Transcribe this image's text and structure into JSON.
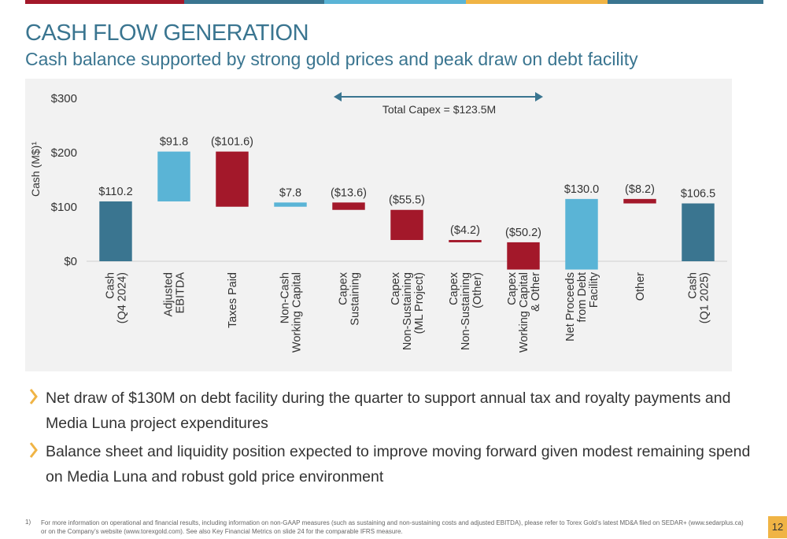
{
  "header": {
    "title": "CASH FLOW GENERATION",
    "subtitle": "Cash balance supported by strong gold prices and peak draw on debt facility"
  },
  "chart_data": {
    "type": "waterfall",
    "y_label": "Cash (M$)¹",
    "annotation": "Total Capex = $123.5M",
    "categories": [
      "Cash\n(Q4 2024)",
      "Adjusted\nEBITDA",
      "Taxes Paid",
      "Non-Cash\nWorking Capital",
      "Capex\nSustaining",
      "Capex\nNon-Sustaining\n(ML Project)",
      "Capex\nNon-Sustaining\n(Other)",
      "Capex\nWorking Capital\n& Other",
      "Net Proceeds\nfrom Debt\nFacility",
      "Other",
      "Cash\n(Q1 2025)"
    ],
    "values": [
      110.2,
      91.8,
      -101.6,
      7.8,
      -13.6,
      -55.5,
      -4.2,
      -50.2,
      130.0,
      -8.2,
      106.5
    ],
    "value_labels": [
      "$110.2",
      "$91.8",
      "($101.6)",
      "$7.8",
      "($13.6)",
      "($55.5)",
      "($4.2)",
      "($50.2)",
      "$130.0",
      "($8.2)",
      "$106.5"
    ],
    "totals": [
      0,
      10
    ],
    "total_color": "#3a7590",
    "increase_color": "#5ab4d6",
    "decrease_color": "#a3182a",
    "ylim": [
      0,
      300
    ],
    "yticks": [
      {
        "value": 0,
        "label": "$0"
      },
      {
        "value": 100,
        "label": "$100"
      },
      {
        "value": 200,
        "label": "$200"
      },
      {
        "value": 300,
        "label": "$300"
      }
    ]
  },
  "bullets": [
    "Net draw of $130M on debt facility during the quarter to support annual tax and royalty payments and Media Luna project expenditures",
    "Balance sheet and liquidity position expected to improve moving forward given modest remaining spend on Media Luna and robust gold price environment"
  ],
  "footnote": {
    "marker": "1)",
    "text": "For more information on operational and financial results, including information on non-GAAP measures (such as sustaining and non-sustaining costs and adjusted EBITDA), please refer to Torex Gold’s latest MD&A filed on SEDAR+ (www.sedarplus.ca) or on the Company’s website (www.torexgold.com). See also Key Financial Metrics on slide 24 for the comparable IFRS measure."
  },
  "page_number": "12"
}
